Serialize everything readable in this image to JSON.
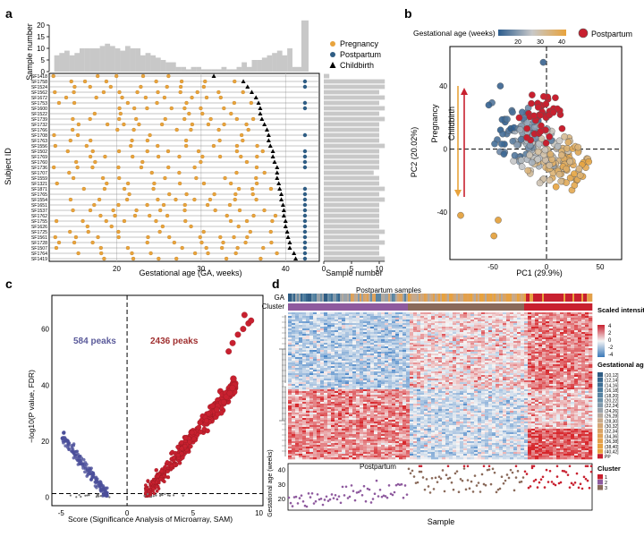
{
  "panel_labels": {
    "a": "a",
    "b": "b",
    "c": "c",
    "d": "d"
  },
  "colors": {
    "pregnancy": "#e8a33c",
    "postpartum": "#2f5d84",
    "childbirth": "#000000",
    "bar": "#c8c8c8",
    "pp_red": "#c8202f",
    "volcano_up": "#c8202f",
    "volcano_down": "#4b4f9a",
    "heat_high": "#d73027",
    "heat_low": "#4a90c8",
    "cluster1": "#c8202f",
    "cluster2": "#8e5a9e",
    "cluster3": "#8a6a5a"
  },
  "chart_data": [
    {
      "panel": "a",
      "type": "scatter",
      "title": "",
      "xlabel": "Gestational age (GA, weeks)",
      "ylabel": "Subject ID",
      "top_ylabel": "Sample number",
      "right_xlabel": "Sample number",
      "x_ticks": [
        20,
        30,
        40
      ],
      "top_y_ticks": [
        0,
        5,
        10,
        15,
        20
      ],
      "right_x_ticks": [
        0,
        5,
        10
      ],
      "xlim": [
        12,
        44
      ],
      "legend": [
        "Pregnancy",
        "Postpartum",
        "Childbirth"
      ],
      "legend_position": "top-right",
      "subjects": [
        "SF1418",
        "SF1758",
        "SF1524",
        "SF1562",
        "SF1672",
        "SF1753",
        "SF1600",
        "SF1522",
        "SF1739",
        "SF1732",
        "SF1766",
        "SF1708",
        "SF1763",
        "SF1556",
        "SF1502",
        "SF1769",
        "SF1760",
        "SF1736",
        "SF1707",
        "SF1559",
        "SF1321",
        "SF1871",
        "SF1765",
        "SF1554",
        "SF1651",
        "SF1537",
        "SF1762",
        "SF1755",
        "SF1626",
        "SF1725",
        "SF1561",
        "SF1728",
        "SF1507",
        "SF1764",
        "SF1419"
      ],
      "childbirth_weeks": [
        31.5,
        35,
        35.5,
        36,
        36.5,
        36.8,
        37,
        37,
        37.2,
        37.5,
        37.8,
        38,
        38,
        38.2,
        38.5,
        38.5,
        38.7,
        39,
        39,
        39,
        39.2,
        39.3,
        39.5,
        39.5,
        39.7,
        39.8,
        39.8,
        40,
        40,
        40.2,
        40.3,
        40.5,
        40.5,
        41,
        41.2
      ],
      "postpartum_subjects": [
        "SF1758",
        "SF1524",
        "SF1753",
        "SF1600",
        "SF1708",
        "SF1502",
        "SF1769",
        "SF1760",
        "SF1736",
        "SF1871",
        "SF1765",
        "SF1554",
        "SF1651",
        "SF1537",
        "SF1762",
        "SF1755",
        "SF1626",
        "SF1725",
        "SF1561",
        "SF1728",
        "SF1507",
        "SF1764",
        "SF1419"
      ],
      "right_sample_numbers": [
        1,
        11,
        11,
        10,
        11,
        10,
        11,
        10,
        11,
        10,
        10,
        10,
        10,
        11,
        10,
        10,
        10,
        10,
        9,
        10,
        10,
        11,
        10,
        11,
        10,
        10,
        10,
        10,
        10,
        11,
        10,
        11,
        10,
        10,
        11
      ]
    },
    {
      "panel": "b",
      "type": "scatter",
      "title": "",
      "xlabel": "PC1 (29.9%)",
      "ylabel": "PC2 (20.02%)",
      "colorbar_title": "Gestational age (weeks)",
      "colorbar_ticks": [
        20,
        30,
        40
      ],
      "legend": [
        "Postpartum"
      ],
      "x_ticks": [
        -50,
        0,
        50
      ],
      "y_ticks": [
        -40,
        0,
        40
      ],
      "xlim": [
        -90,
        70
      ],
      "ylim": [
        -70,
        65
      ],
      "annotations": [
        "Pregnancy",
        "Childbirth"
      ]
    },
    {
      "panel": "c",
      "type": "scatter",
      "title": "",
      "xlabel": "Score (Significance Analysis of Microarray, SAM)",
      "ylabel": "−log10(P value, FDR)",
      "x_ticks": [
        -5,
        0,
        5,
        10
      ],
      "y_ticks": [
        0,
        20,
        40,
        60
      ],
      "xlim": [
        -5.7,
        10.3
      ],
      "ylim": [
        -3,
        72
      ],
      "annotations": [
        "584 peaks",
        "2436 peaks"
      ]
    },
    {
      "panel": "d",
      "type": "heatmap",
      "title": "",
      "top_annotation_labels": [
        "GA",
        "Cluster"
      ],
      "top_label": "Postpartum samples",
      "bottom_label": "Postpartum",
      "xlabel": "Sample",
      "bottom_ylabel": "Gestational age (weeks)",
      "bottom_y_ticks": [
        20,
        30,
        40
      ],
      "scale_title": "Scaled intensity",
      "scale_ticks": [
        4,
        2,
        0,
        -2,
        -4
      ],
      "ga_legend_title": "Gestational age (GA)",
      "ga_bins": [
        "(10,12]",
        "(12,14]",
        "(14,16]",
        "(16,18]",
        "(18,20]",
        "(20,22]",
        "(22,24]",
        "(24,26]",
        "(26,28]",
        "(28,30]",
        "(30,32]",
        "(32,34]",
        "(34,36]",
        "(36,38]",
        "(38,40]",
        "(40,42]",
        "PP"
      ],
      "cluster_legend_title": "Cluster",
      "clusters": [
        "1",
        "2",
        "3"
      ]
    }
  ]
}
